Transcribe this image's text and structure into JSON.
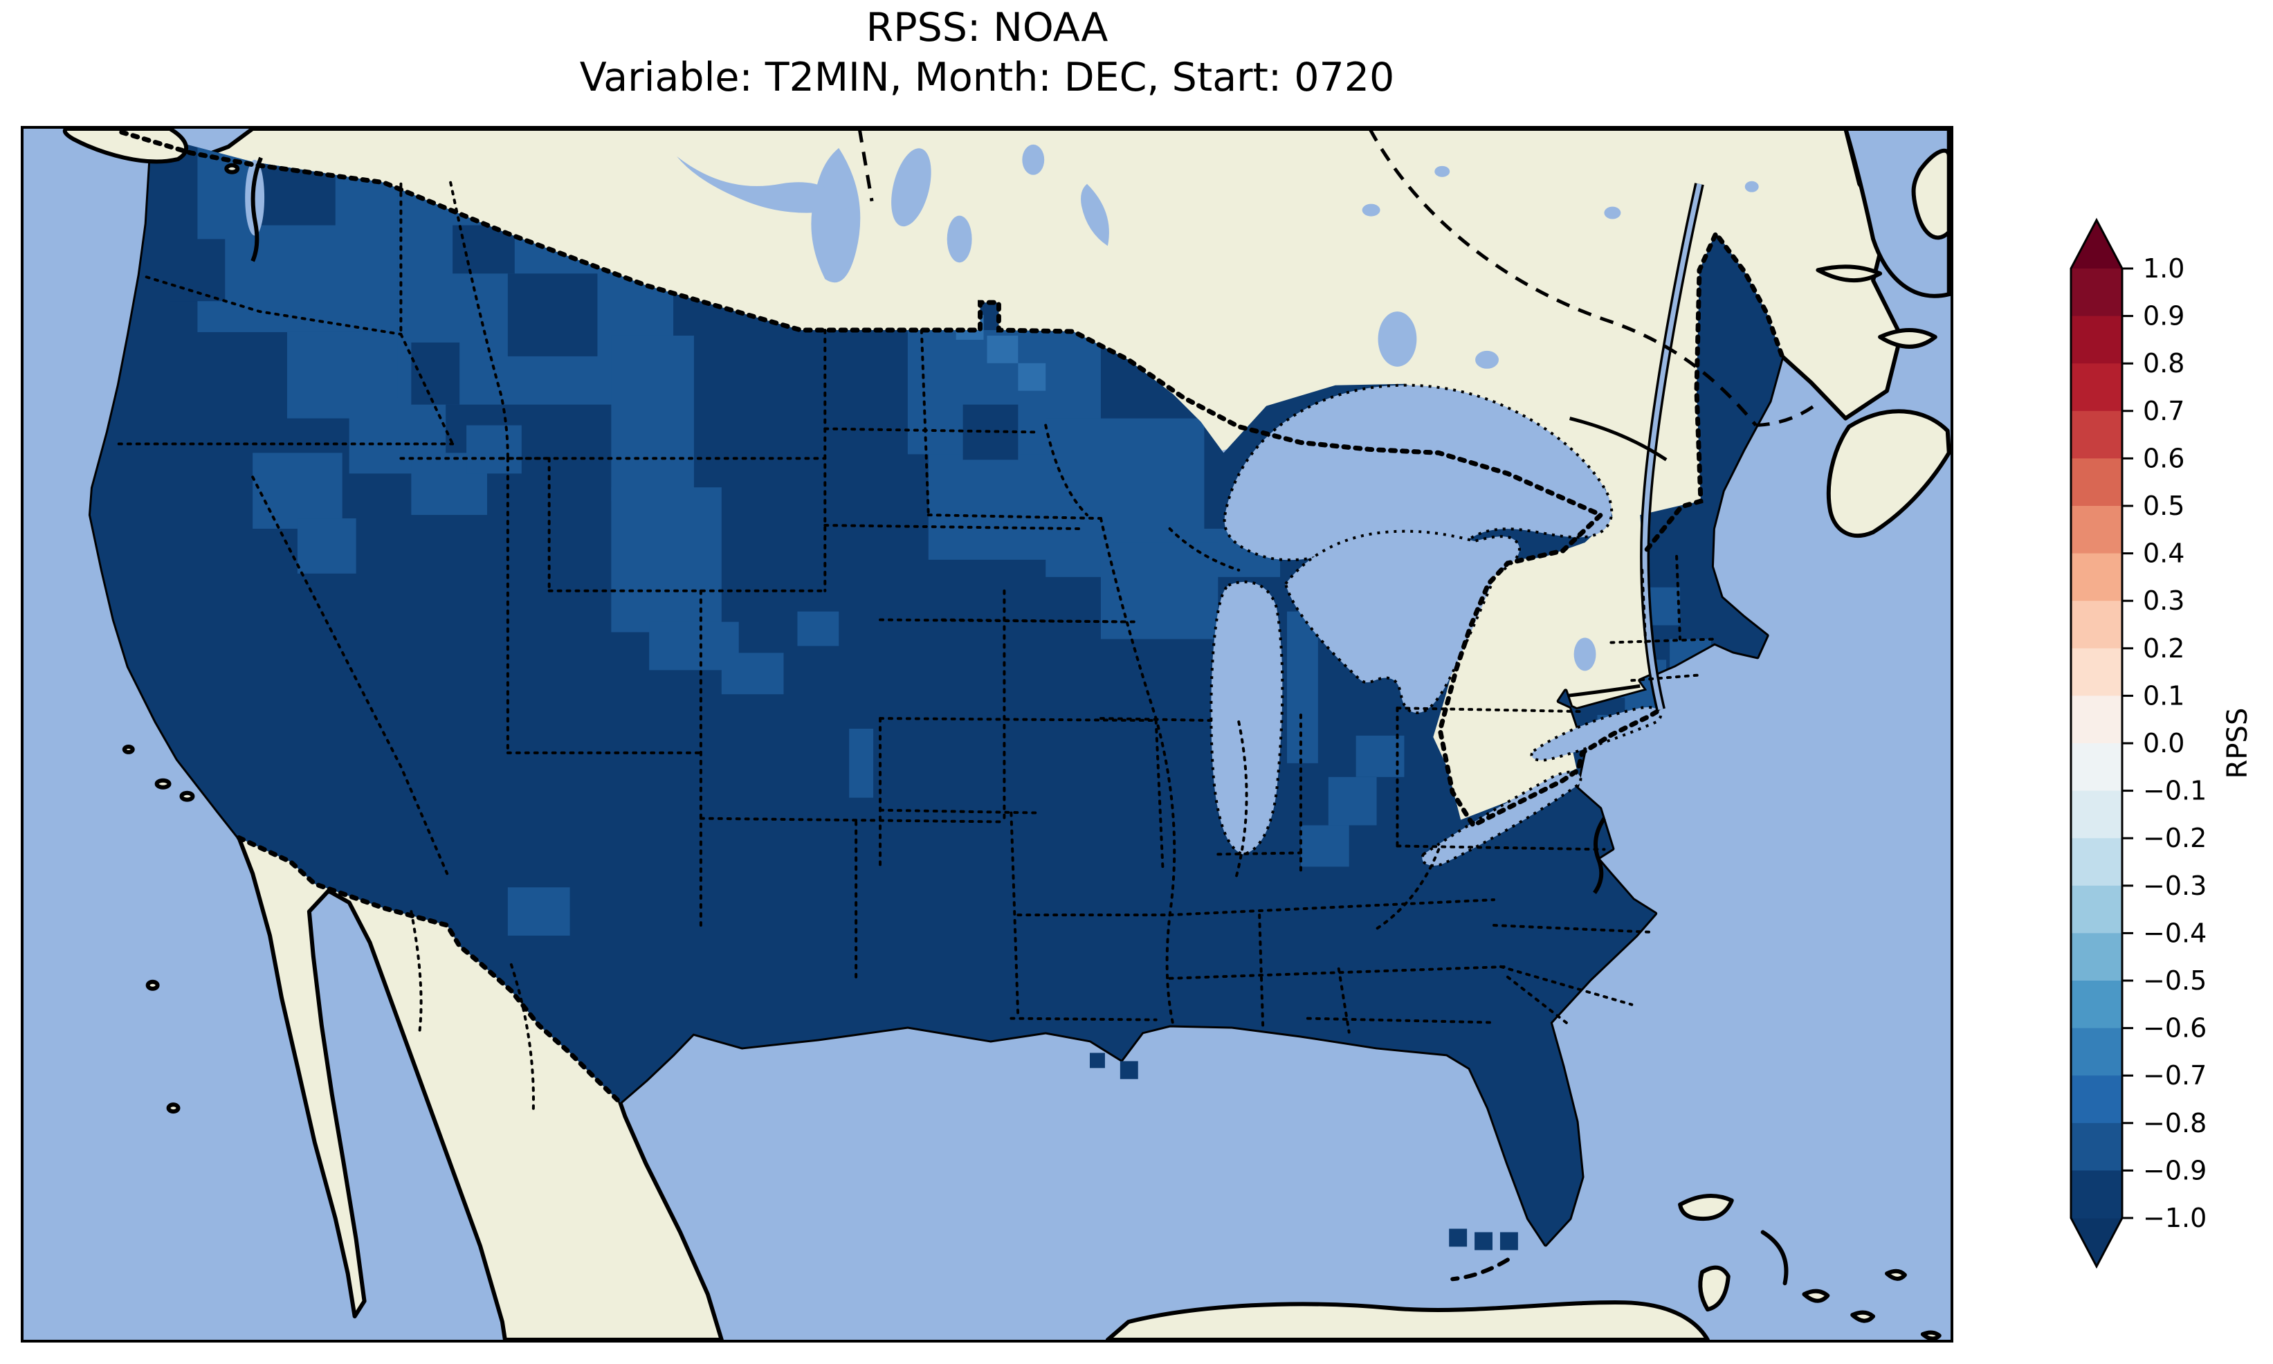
{
  "figure": {
    "title": "RPSS: NOAA",
    "subtitle": "Variable: T2MIN, Month: DEC, Start: 0720"
  },
  "colorbar": {
    "label": "RPSS",
    "ticks": [
      "1.0",
      "0.9",
      "0.8",
      "0.7",
      "0.6",
      "0.5",
      "0.4",
      "0.3",
      "0.2",
      "0.1",
      "0.0",
      "−0.1",
      "−0.2",
      "−0.3",
      "−0.4",
      "−0.5",
      "−0.6",
      "−0.7",
      "−0.8",
      "−0.9",
      "−1.0"
    ],
    "bin_colors_top_to_bottom": [
      "#7f0b26",
      "#9c1127",
      "#b41f2e",
      "#c73f3f",
      "#d96753",
      "#e98c6f",
      "#f5ae8d",
      "#facab1",
      "#fcdfcd",
      "#f9efe9",
      "#eef3f5",
      "#dcebf2",
      "#c0ddec",
      "#9ccae1",
      "#75b3d4",
      "#4b98c6",
      "#3580b9",
      "#2368ad",
      "#1a5490",
      "#0d3b70"
    ],
    "over_arrow_color": "#67001f",
    "under_arrow_color": "#0b3567",
    "outline_color": "#000000"
  },
  "map": {
    "colors": {
      "ocean": "#97b6e1",
      "land_no_data": "#efefdb",
      "coastline": "#000000",
      "rpss_bin_m10_m09": "#0d3b70",
      "rpss_bin_m09_m08": "#1b5693",
      "rpss_bin_m08_m07": "#2d6fad"
    },
    "features": [
      "United States (gridded RPSS data)",
      "Canada (no data)",
      "Mexico (no data)",
      "Great Lakes",
      "St. Lawrence River",
      "Pacific Ocean",
      "Atlantic Ocean",
      "Gulf of Mexico",
      "Vancouver Island",
      "Baja California",
      "Cuba",
      "Bahamas",
      "Nova Scotia",
      "Prince Edward Island",
      "Newfoundland"
    ]
  },
  "chart_data": {
    "type": "heatmap",
    "title": "RPSS: NOAA",
    "subtitle": "Variable: T2MIN, Month: DEC, Start: 0720",
    "metric": "RPSS",
    "variable": "T2MIN",
    "month": "DEC",
    "start": "0720",
    "source_label": "NOAA",
    "colorbar": {
      "label": "RPSS",
      "range": [
        -1.0,
        1.0
      ],
      "bin_width": 0.1,
      "tick_values": [
        1.0,
        0.9,
        0.8,
        0.7,
        0.6,
        0.5,
        0.4,
        0.3,
        0.2,
        0.1,
        0.0,
        -0.1,
        -0.2,
        -0.3,
        -0.4,
        -0.5,
        -0.6,
        -0.7,
        -0.8,
        -0.9,
        -1.0
      ],
      "extend": "both",
      "colormap": "RdBu-style diverging (dark red = +1.0, white = 0.0, dark navy = −1.0)",
      "position": "right"
    },
    "map_extent": "Contiguous United States with southern Canada, northern Mexico, Gulf of Mexico and western Atlantic",
    "values_by_region": [
      {
        "region": "Vast majority of CONUS: California, Southwest, Great Plains, Texas, South, Midwest, East Coast, Florida",
        "rpss_bin": "−1.0 to −0.9"
      },
      {
        "region": "Washington state, northern Idaho / western Montana, spots in Oregon, NE Nevada, Utah, western Colorado, eastern Montana and Dakotas, Minnesota, Wisconsin, Michigan lake margins, cells south of Lakes Erie/Ontario, scattered New England and coastal NJ cells",
        "rpss_bin": "−0.9 to −0.8"
      },
      {
        "region": "A few cells in far northern Minnesota near Lake of the Woods",
        "rpss_bin": "−0.8 to −0.7"
      },
      {
        "region": "Three detached grid cells southwest of the Florida tip and a few offshore Louisiana cells",
        "rpss_bin": "−1.0 to −0.9"
      },
      {
        "region": "Canada, Mexico, Cuba, Bahamas (land mask)",
        "rpss_bin": "no data"
      },
      {
        "region": "Oceans and Great Lakes (water mask)",
        "rpss_bin": "no data"
      }
    ],
    "summary": "RPSS is strongly negative (≈ −1) over essentially the entire CONUS for December T2MIN forecasts initialized 0720; no positive-skill (red) regions appear anywhere on the map."
  }
}
